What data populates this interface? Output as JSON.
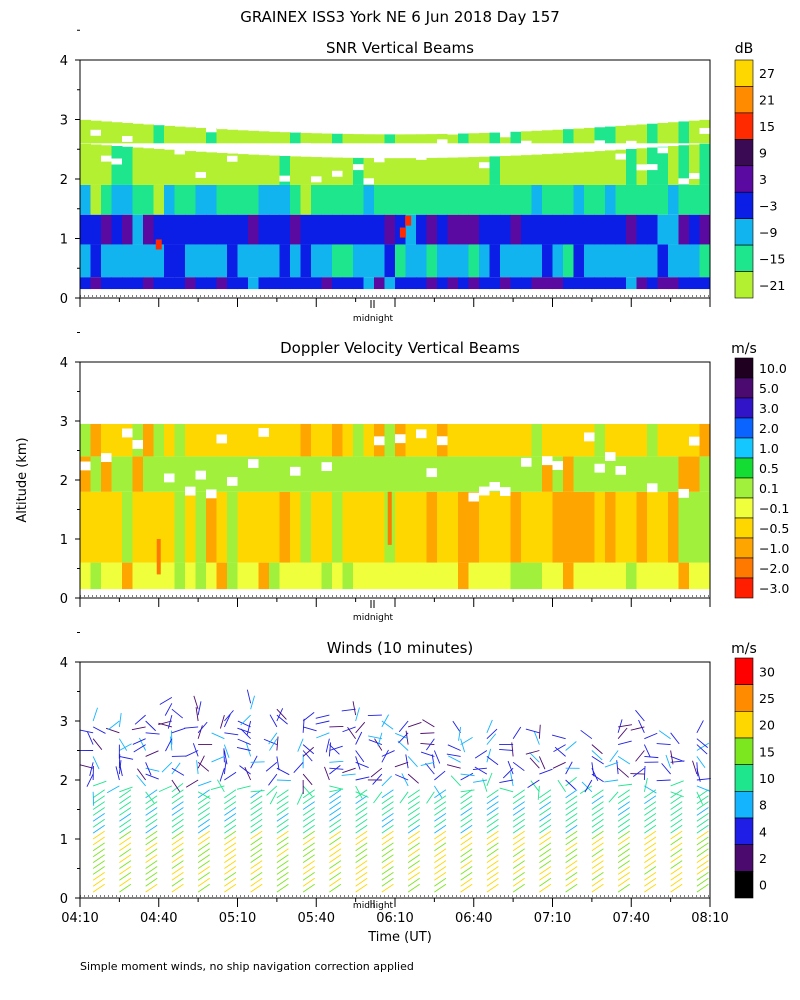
{
  "figure": {
    "title": "GRAINEX ISS3 York NE   6 Jun 2018 Day 157",
    "ylabel": "Altitude (km)",
    "xlabel": "Time (UT)",
    "footnote": "Simple moment winds, no ship navigation correction applied",
    "midnight_label": "midnight"
  },
  "chart_data": [
    {
      "type": "heatmap",
      "title": "SNR Vertical Beams",
      "xlabel": "",
      "ylabel": "Altitude (km)",
      "ylim": [
        0,
        4
      ],
      "yticks": [
        "0",
        "1",
        "2",
        "3",
        "4"
      ],
      "xlim_minutes_after_0410": [
        0,
        240
      ],
      "colorbar": {
        "unit": "dB",
        "labels": [
          "27",
          "21",
          "15",
          "9",
          "3",
          "−3",
          "−9",
          "−15",
          "−21"
        ],
        "colors": [
          "#ffd700",
          "#ff8c00",
          "#ff2a00",
          "#3a0a55",
          "#5a0aa0",
          "#0a1ee6",
          "#12b4f0",
          "#1ee68c",
          "#b4f032"
        ]
      },
      "layers": [
        {
          "from_km": 0.15,
          "to_km": 0.35,
          "level_db": -3
        },
        {
          "from_km": 0.35,
          "to_km": 0.9,
          "level_db": -9
        },
        {
          "from_km": 0.9,
          "to_km": 1.4,
          "level_db": -3
        },
        {
          "from_km": 1.4,
          "to_km": 1.9,
          "level_db": -15
        },
        {
          "from_km": 1.9,
          "to_km": 2.6,
          "level_db": -21
        },
        {
          "from_km": 2.6,
          "to_km": 3.0,
          "level_db": -21
        }
      ]
    },
    {
      "type": "heatmap",
      "title": "Doppler Velocity Vertical Beams",
      "xlabel": "",
      "ylabel": "Altitude (km)",
      "ylim": [
        0,
        4
      ],
      "yticks": [
        "0",
        "1",
        "2",
        "3",
        "4"
      ],
      "xlim_minutes_after_0410": [
        0,
        240
      ],
      "colorbar": {
        "unit": "m/s",
        "labels": [
          "10.0",
          "5.0",
          "3.0",
          "2.0",
          "1.0",
          "0.5",
          "0.1",
          "−0.1",
          "−0.5",
          "−1.0",
          "−2.0",
          "−3.0"
        ],
        "colors": [
          "#200020",
          "#4a0a70",
          "#3214c8",
          "#0a64ff",
          "#14c8ff",
          "#14dc32",
          "#a0f03c",
          "#f0ff3c",
          "#ffd700",
          "#ffa500",
          "#ff7800",
          "#ff1e00"
        ]
      },
      "layers": [
        {
          "from_km": 0.15,
          "to_km": 0.6,
          "level_ms": -0.1
        },
        {
          "from_km": 0.6,
          "to_km": 1.8,
          "level_ms": -0.5
        },
        {
          "from_km": 1.8,
          "to_km": 2.4,
          "level_ms": 0.1
        },
        {
          "from_km": 2.4,
          "to_km": 2.95,
          "level_ms": -0.5
        }
      ]
    },
    {
      "type": "wind_barbs",
      "title": "Winds (10 minutes)",
      "xlabel": "Time (UT)",
      "ylabel": "Altitude (km)",
      "ylim": [
        0,
        4
      ],
      "yticks": [
        "0",
        "1",
        "2",
        "3",
        "4"
      ],
      "xticks": [
        "04:10",
        "04:40",
        "05:10",
        "05:40",
        "06:10",
        "06:40",
        "07:10",
        "07:40",
        "08:10"
      ],
      "interval_minutes": 10,
      "colorbar": {
        "unit": "m/s",
        "labels": [
          "30",
          "25",
          "20",
          "15",
          "10",
          "8",
          "4",
          "2",
          "0"
        ],
        "colors": [
          "#ff0000",
          "#ff8c00",
          "#ffd700",
          "#7ce61e",
          "#1ee68c",
          "#14b4ff",
          "#1e1ee6",
          "#4b0a6e",
          "#000000"
        ]
      },
      "profiles": [
        {
          "time_min": 5,
          "top_km": 3.1
        },
        {
          "time_min": 15,
          "top_km": 3.1
        },
        {
          "time_min": 25,
          "top_km": 3.2
        },
        {
          "time_min": 35,
          "top_km": 3.5
        },
        {
          "time_min": 45,
          "top_km": 3.3
        },
        {
          "time_min": 55,
          "top_km": 3.2
        },
        {
          "time_min": 65,
          "top_km": 3.4
        },
        {
          "time_min": 75,
          "top_km": 3.3
        },
        {
          "time_min": 85,
          "top_km": 3.1
        },
        {
          "time_min": 95,
          "top_km": 3.2
        },
        {
          "time_min": 105,
          "top_km": 3.3
        },
        {
          "time_min": 115,
          "top_km": 3.2
        },
        {
          "time_min": 125,
          "top_km": 3.1
        },
        {
          "time_min": 135,
          "top_km": 3.0
        },
        {
          "time_min": 145,
          "top_km": 3.0
        },
        {
          "time_min": 155,
          "top_km": 2.9
        },
        {
          "time_min": 165,
          "top_km": 2.8
        },
        {
          "time_min": 175,
          "top_km": 2.9
        },
        {
          "time_min": 185,
          "top_km": 2.8
        },
        {
          "time_min": 195,
          "top_km": 2.8
        },
        {
          "time_min": 205,
          "top_km": 3.0
        },
        {
          "time_min": 215,
          "top_km": 3.1
        },
        {
          "time_min": 225,
          "top_km": 2.9
        },
        {
          "time_min": 235,
          "top_km": 2.9
        }
      ]
    }
  ]
}
